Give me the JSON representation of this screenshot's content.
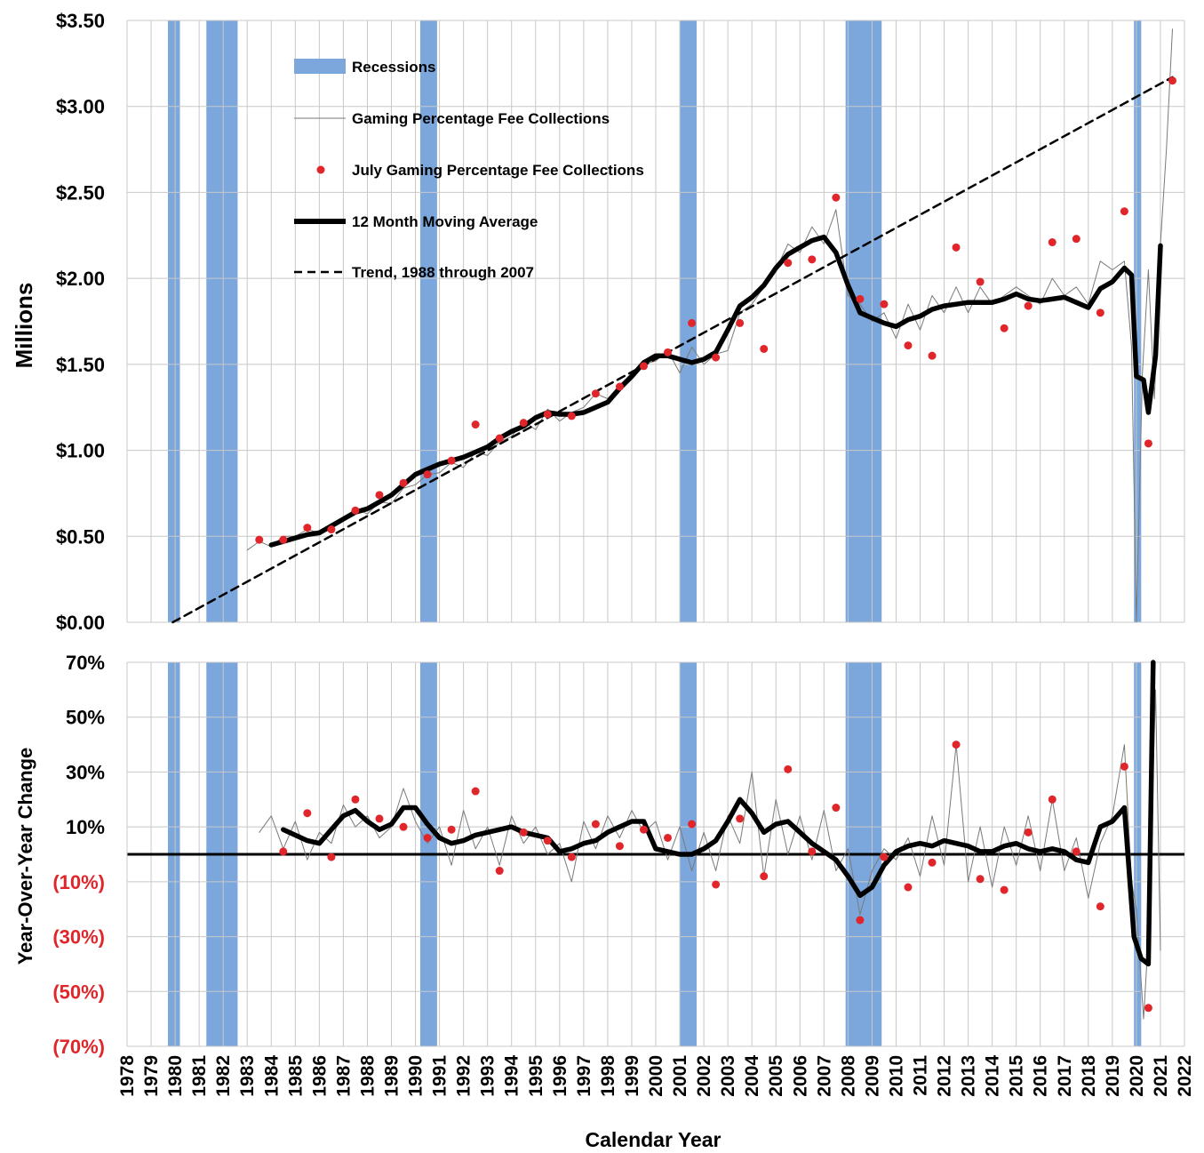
{
  "chart_data": [
    {
      "type": "line",
      "panel": "top",
      "ylabel": "Millions",
      "xlabel": "Calendar Year",
      "ylim": [
        0,
        3.5
      ],
      "xlim": [
        1978,
        2022
      ],
      "y_ticks": [
        "$3.50",
        "$3.00",
        "$2.50",
        "$2.00",
        "$1.50",
        "$1.00",
        "$0.50",
        "$0.00"
      ],
      "x_ticks": [
        "1978",
        "1979",
        "1980",
        "1981",
        "1982",
        "1983",
        "1984",
        "1985",
        "1986",
        "1987",
        "1988",
        "1989",
        "1990",
        "1991",
        "1992",
        "1993",
        "1994",
        "1995",
        "1996",
        "1997",
        "1998",
        "1999",
        "2000",
        "2001",
        "2002",
        "2003",
        "2004",
        "2005",
        "2006",
        "2007",
        "2008",
        "2009",
        "2010",
        "2011",
        "2012",
        "2013",
        "2014",
        "2015",
        "2016",
        "2017",
        "2018",
        "2019",
        "2020",
        "2021",
        "2022"
      ],
      "grid": true,
      "legend_position": "top-left",
      "recessions": [
        [
          1979.7,
          1980.2
        ],
        [
          1981.3,
          1982.6
        ],
        [
          1990.2,
          1990.9
        ],
        [
          2001.0,
          2001.7
        ],
        [
          2007.9,
          2009.4
        ],
        [
          2019.9,
          2020.2
        ]
      ],
      "series": [
        {
          "name": "Recessions",
          "legend": "Recessions",
          "color": "#7ba7dc",
          "kind": "band"
        },
        {
          "name": "Gaming Percentage Fee Collections",
          "legend": "Gaming Percentage Fee Collections",
          "color": "#7a7a7a",
          "kind": "monthly-line",
          "x": [
            1983.0,
            1983.5,
            1984.0,
            1984.5,
            1985.0,
            1985.5,
            1986.0,
            1986.5,
            1987.0,
            1987.5,
            1988.0,
            1988.5,
            1989.0,
            1989.5,
            1990.0,
            1990.5,
            1991.0,
            1991.5,
            1992.0,
            1992.5,
            1993.0,
            1993.5,
            1994.0,
            1994.5,
            1995.0,
            1995.5,
            1996.0,
            1996.5,
            1997.0,
            1997.5,
            1998.0,
            1998.5,
            1999.0,
            1999.5,
            2000.0,
            2000.5,
            2001.0,
            2001.5,
            2002.0,
            2002.5,
            2003.0,
            2003.5,
            2004.0,
            2004.5,
            2005.0,
            2005.5,
            2006.0,
            2006.5,
            2007.0,
            2007.5,
            2008.0,
            2008.5,
            2009.0,
            2009.5,
            2010.0,
            2010.5,
            2011.0,
            2011.5,
            2012.0,
            2012.5,
            2013.0,
            2013.5,
            2014.0,
            2014.5,
            2015.0,
            2015.5,
            2016.0,
            2016.5,
            2017.0,
            2017.5,
            2018.0,
            2018.5,
            2019.0,
            2019.5,
            2019.8,
            2020.0,
            2020.25,
            2020.5,
            2020.75,
            2021.0,
            2021.25,
            2021.5
          ],
          "values": [
            0.42,
            0.47,
            0.44,
            0.5,
            0.5,
            0.54,
            0.52,
            0.57,
            0.6,
            0.66,
            0.63,
            0.7,
            0.69,
            0.78,
            0.8,
            0.86,
            0.87,
            0.93,
            0.9,
            0.99,
            0.97,
            1.05,
            1.08,
            1.17,
            1.12,
            1.24,
            1.17,
            1.22,
            1.25,
            1.33,
            1.3,
            1.38,
            1.45,
            1.5,
            1.52,
            1.58,
            1.45,
            1.6,
            1.5,
            1.56,
            1.58,
            1.8,
            1.85,
            1.95,
            2.05,
            2.2,
            2.15,
            2.3,
            2.2,
            2.4,
            1.9,
            1.85,
            1.75,
            1.8,
            1.65,
            1.85,
            1.7,
            1.9,
            1.8,
            1.95,
            1.8,
            1.95,
            1.85,
            1.9,
            1.95,
            1.9,
            1.85,
            2.0,
            1.9,
            1.95,
            1.85,
            2.1,
            2.05,
            2.1,
            1.6,
            0.0,
            1.45,
            2.05,
            1.3,
            2.2,
            2.75,
            3.45
          ]
        },
        {
          "name": "July Gaming Percentage Fee Collections",
          "legend": "July Gaming Percentage Fee Collections",
          "color": "#e0262b",
          "kind": "markers",
          "x": [
            1983.5,
            1984.5,
            1985.5,
            1986.5,
            1987.5,
            1988.5,
            1989.5,
            1990.5,
            1991.5,
            1992.5,
            1993.5,
            1994.5,
            1995.5,
            1996.5,
            1997.5,
            1998.5,
            1999.5,
            2000.5,
            2001.5,
            2002.5,
            2003.5,
            2004.5,
            2005.5,
            2006.5,
            2007.5,
            2008.5,
            2009.5,
            2010.5,
            2011.5,
            2012.5,
            2013.5,
            2014.5,
            2015.5,
            2016.5,
            2017.5,
            2018.5,
            2019.5,
            2020.5,
            2021.5
          ],
          "values": [
            0.48,
            0.48,
            0.55,
            0.54,
            0.65,
            0.74,
            0.81,
            0.86,
            0.94,
            1.15,
            1.07,
            1.16,
            1.21,
            1.2,
            1.33,
            1.37,
            1.49,
            1.57,
            1.74,
            1.54,
            1.74,
            1.59,
            2.09,
            2.11,
            2.47,
            1.88,
            1.85,
            1.61,
            1.55,
            2.18,
            1.98,
            1.71,
            1.84,
            2.21,
            2.23,
            1.8,
            2.39,
            1.04,
            3.15
          ]
        },
        {
          "name": "12 Month Moving Average",
          "legend": "12 Month Moving Average",
          "color": "#000000",
          "kind": "thick-line",
          "x": [
            1984.0,
            1984.5,
            1985.0,
            1985.5,
            1986.0,
            1986.5,
            1987.0,
            1987.5,
            1988.0,
            1988.5,
            1989.0,
            1989.5,
            1990.0,
            1990.5,
            1991.0,
            1991.5,
            1992.0,
            1992.5,
            1993.0,
            1993.5,
            1994.0,
            1994.5,
            1995.0,
            1995.5,
            1996.0,
            1996.5,
            1997.0,
            1997.5,
            1998.0,
            1998.5,
            1999.0,
            1999.5,
            2000.0,
            2000.5,
            2001.0,
            2001.5,
            2002.0,
            2002.5,
            2003.0,
            2003.5,
            2004.0,
            2004.5,
            2005.0,
            2005.5,
            2006.0,
            2006.5,
            2007.0,
            2007.5,
            2008.0,
            2008.5,
            2009.0,
            2009.5,
            2010.0,
            2010.5,
            2011.0,
            2011.5,
            2012.0,
            2012.5,
            2013.0,
            2013.5,
            2014.0,
            2014.5,
            2015.0,
            2015.5,
            2016.0,
            2016.5,
            2017.0,
            2017.5,
            2018.0,
            2018.5,
            2019.0,
            2019.5,
            2019.8,
            2020.0,
            2020.3,
            2020.5,
            2020.8,
            2021.0
          ],
          "values": [
            0.45,
            0.47,
            0.49,
            0.51,
            0.52,
            0.56,
            0.6,
            0.64,
            0.66,
            0.7,
            0.74,
            0.8,
            0.86,
            0.89,
            0.92,
            0.94,
            0.96,
            0.99,
            1.02,
            1.07,
            1.11,
            1.14,
            1.19,
            1.22,
            1.21,
            1.21,
            1.22,
            1.25,
            1.28,
            1.36,
            1.43,
            1.51,
            1.55,
            1.55,
            1.53,
            1.51,
            1.53,
            1.57,
            1.7,
            1.84,
            1.89,
            1.96,
            2.06,
            2.14,
            2.18,
            2.22,
            2.24,
            2.15,
            1.96,
            1.8,
            1.77,
            1.74,
            1.72,
            1.76,
            1.78,
            1.82,
            1.84,
            1.85,
            1.86,
            1.86,
            1.86,
            1.88,
            1.91,
            1.88,
            1.87,
            1.88,
            1.89,
            1.86,
            1.83,
            1.94,
            1.98,
            2.06,
            2.02,
            1.43,
            1.41,
            1.22,
            1.55,
            2.19
          ]
        },
        {
          "name": "Trend, 1988 through 2007",
          "legend": "Trend, 1988 through 2007",
          "color": "#000000",
          "kind": "dashed-line",
          "x": [
            1979.9,
            2021.5
          ],
          "values": [
            0.0,
            3.17
          ]
        }
      ]
    },
    {
      "type": "line",
      "panel": "bottom",
      "ylabel": "Year-Over-Year Change",
      "xlabel": "Calendar Year",
      "ylim": [
        -70,
        70
      ],
      "xlim": [
        1978,
        2022
      ],
      "y_ticks": [
        "70%",
        "50%",
        "30%",
        "10%",
        "(10%)",
        "(30%)",
        "(50%)",
        "(70%)"
      ],
      "grid": true,
      "zero_line": 0,
      "series": [
        {
          "name": "Gaming Percentage Fee Collections",
          "color": "#7a7a7a",
          "kind": "monthly-line",
          "x": [
            1983.5,
            1984.0,
            1984.5,
            1985.0,
            1985.5,
            1986.0,
            1986.5,
            1987.0,
            1987.5,
            1988.0,
            1988.5,
            1989.0,
            1989.5,
            1990.0,
            1990.5,
            1991.0,
            1991.5,
            1992.0,
            1992.5,
            1993.0,
            1993.5,
            1994.0,
            1994.5,
            1995.0,
            1995.5,
            1996.0,
            1996.5,
            1997.0,
            1997.5,
            1998.0,
            1998.5,
            1999.0,
            1999.5,
            2000.0,
            2000.5,
            2001.0,
            2001.5,
            2002.0,
            2002.5,
            2003.0,
            2003.5,
            2004.0,
            2004.5,
            2005.0,
            2005.5,
            2006.0,
            2006.5,
            2007.0,
            2007.5,
            2008.0,
            2008.5,
            2009.0,
            2009.5,
            2010.0,
            2010.5,
            2011.0,
            2011.5,
            2012.0,
            2012.5,
            2013.0,
            2013.5,
            2014.0,
            2014.5,
            2015.0,
            2015.5,
            2016.0,
            2016.5,
            2017.0,
            2017.5,
            2018.0,
            2018.5,
            2019.0,
            2019.5,
            2019.8,
            2020.0,
            2020.3,
            2020.5,
            2020.8,
            2021.0
          ],
          "values": [
            8,
            14,
            2,
            12,
            -2,
            8,
            4,
            18,
            10,
            14,
            6,
            10,
            24,
            12,
            4,
            10,
            -4,
            16,
            2,
            10,
            -4,
            14,
            4,
            10,
            0,
            4,
            -10,
            12,
            2,
            14,
            6,
            16,
            8,
            12,
            -2,
            10,
            -6,
            8,
            -6,
            14,
            4,
            30,
            -8,
            20,
            0,
            14,
            -2,
            16,
            -6,
            2,
            -22,
            -6,
            2,
            -2,
            6,
            -8,
            14,
            -4,
            40,
            -10,
            10,
            -12,
            10,
            -4,
            14,
            -6,
            20,
            -6,
            6,
            -16,
            4,
            14,
            40,
            -10,
            -20,
            -60,
            -30,
            60,
            -35
          ]
        },
        {
          "name": "July Gaming Percentage Fee Collections",
          "color": "#e0262b",
          "kind": "markers",
          "x": [
            1984.5,
            1985.5,
            1986.5,
            1987.5,
            1988.5,
            1989.5,
            1990.5,
            1991.5,
            1992.5,
            1993.5,
            1994.5,
            1995.5,
            1996.5,
            1997.5,
            1998.5,
            1999.5,
            2000.5,
            2001.5,
            2002.5,
            2003.5,
            2004.5,
            2005.5,
            2006.5,
            2007.5,
            2008.5,
            2009.5,
            2010.5,
            2011.5,
            2012.5,
            2013.5,
            2014.5,
            2015.5,
            2016.5,
            2017.5,
            2018.5,
            2019.5,
            2020.5
          ],
          "values": [
            1,
            15,
            -1,
            20,
            13,
            10,
            6,
            9,
            23,
            -6,
            8,
            5,
            -1,
            11,
            3,
            9,
            6,
            11,
            -11,
            13,
            -8,
            31,
            1,
            17,
            -24,
            -1,
            -12,
            -3,
            40,
            -9,
            -13,
            8,
            20,
            1,
            -19,
            32,
            -56
          ]
        },
        {
          "name": "12 Month Moving Average",
          "color": "#000000",
          "kind": "thick-line",
          "x": [
            1984.5,
            1985.0,
            1985.5,
            1986.0,
            1986.5,
            1987.0,
            1987.5,
            1988.0,
            1988.5,
            1989.0,
            1989.5,
            1990.0,
            1990.5,
            1991.0,
            1991.5,
            1992.0,
            1992.5,
            1993.0,
            1993.5,
            1994.0,
            1994.5,
            1995.0,
            1995.5,
            1996.0,
            1996.5,
            1997.0,
            1997.5,
            1998.0,
            1998.5,
            1999.0,
            1999.5,
            2000.0,
            2000.5,
            2001.0,
            2001.5,
            2002.0,
            2002.5,
            2003.0,
            2003.5,
            2004.0,
            2004.5,
            2005.0,
            2005.5,
            2006.0,
            2006.5,
            2007.0,
            2007.5,
            2008.0,
            2008.5,
            2009.0,
            2009.5,
            2010.0,
            2010.5,
            2011.0,
            2011.5,
            2012.0,
            2012.5,
            2013.0,
            2013.5,
            2014.0,
            2014.5,
            2015.0,
            2015.5,
            2016.0,
            2016.5,
            2017.0,
            2017.5,
            2018.0,
            2018.5,
            2019.0,
            2019.5,
            2019.9,
            2020.2,
            2020.5,
            2020.7
          ],
          "values": [
            9,
            7,
            5,
            4,
            9,
            14,
            16,
            12,
            9,
            11,
            17,
            17,
            11,
            6,
            4,
            5,
            7,
            8,
            9,
            10,
            8,
            7,
            6,
            1,
            2,
            4,
            5,
            8,
            10,
            12,
            12,
            2,
            1,
            0,
            0,
            2,
            5,
            12,
            20,
            15,
            8,
            11,
            12,
            8,
            4,
            1,
            -2,
            -8,
            -15,
            -12,
            -4,
            1,
            3,
            4,
            3,
            5,
            4,
            3,
            1,
            1,
            3,
            4,
            2,
            1,
            2,
            1,
            -2,
            -3,
            10,
            12,
            17,
            -30,
            -38,
            -40,
            70
          ]
        }
      ]
    }
  ]
}
